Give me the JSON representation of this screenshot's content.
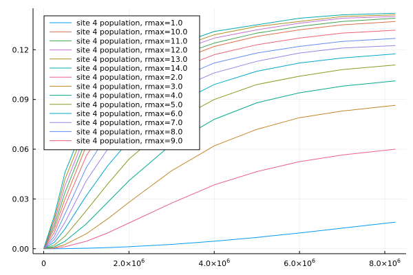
{
  "chart_data": {
    "type": "line",
    "title": "",
    "xlabel": "",
    "ylabel": "",
    "xlim": [
      -250000,
      8500000
    ],
    "ylim": [
      -0.003,
      0.145
    ],
    "grid": true,
    "legend_position": "top-left",
    "x_ticks": [
      {
        "value": 0,
        "label": "0",
        "exp": ""
      },
      {
        "value": 2000000,
        "label": "2.0×10",
        "exp": "6"
      },
      {
        "value": 4000000,
        "label": "4.0×10",
        "exp": "6"
      },
      {
        "value": 6000000,
        "label": "6.0×10",
        "exp": "6"
      },
      {
        "value": 8000000,
        "label": "8.0×10",
        "exp": "6"
      }
    ],
    "y_ticks": [
      {
        "value": 0.0,
        "label": "0.00"
      },
      {
        "value": 0.03,
        "label": "0.03"
      },
      {
        "value": 0.06,
        "label": "0.06"
      },
      {
        "value": 0.09,
        "label": "0.09"
      },
      {
        "value": 0.12,
        "label": "0.12"
      }
    ],
    "x": [
      0,
      250000,
      500000,
      1000000,
      1500000,
      2000000,
      3000000,
      4000000,
      5000000,
      6000000,
      7000000,
      8250000
    ],
    "series": [
      {
        "name": "site 4 population, rmax=1.0",
        "color": "#009AFA",
        "values": [
          0,
          2e-05,
          8e-05,
          0.0003,
          0.0007,
          0.0012,
          0.0026,
          0.0045,
          0.0068,
          0.0095,
          0.0124,
          0.016
        ]
      },
      {
        "name": "site 4 population, rmax=10.0",
        "color": "#E26F46",
        "values": [
          0,
          0.012,
          0.03,
          0.062,
          0.082,
          0.095,
          0.112,
          0.122,
          0.128,
          0.132,
          0.135,
          0.137
        ]
      },
      {
        "name": "site 4 population, rmax=11.0",
        "color": "#3DA44D",
        "values": [
          0,
          0.014,
          0.034,
          0.066,
          0.086,
          0.099,
          0.115,
          0.124,
          0.13,
          0.134,
          0.137,
          0.139
        ]
      },
      {
        "name": "site 4 population, rmax=12.0",
        "color": "#C271D2",
        "values": [
          0,
          0.016,
          0.038,
          0.07,
          0.09,
          0.102,
          0.118,
          0.127,
          0.132,
          0.136,
          0.139,
          0.14
        ]
      },
      {
        "name": "site 4 population, rmax=13.0",
        "color": "#AC8E18",
        "values": [
          0,
          0.018,
          0.042,
          0.074,
          0.093,
          0.106,
          0.12,
          0.129,
          0.134,
          0.137,
          0.14,
          0.141
        ]
      },
      {
        "name": "site 4 population, rmax=14.0",
        "color": "#00A9AD",
        "values": [
          0,
          0.02,
          0.046,
          0.078,
          0.097,
          0.109,
          0.122,
          0.131,
          0.135,
          0.139,
          0.141,
          0.142
        ]
      },
      {
        "name": "site 4 population, rmax=2.0",
        "color": "#ED5D92",
        "values": [
          0,
          0.0003,
          0.0012,
          0.0045,
          0.0095,
          0.0155,
          0.0275,
          0.0385,
          0.0465,
          0.0525,
          0.0565,
          0.06
        ]
      },
      {
        "name": "site 4 population, rmax=3.0",
        "color": "#C68225",
        "values": [
          0,
          0.0006,
          0.0025,
          0.009,
          0.018,
          0.028,
          0.047,
          0.062,
          0.072,
          0.079,
          0.083,
          0.0865
        ]
      },
      {
        "name": "site 4 population, rmax=4.0",
        "color": "#00A98D",
        "values": [
          0,
          0.0012,
          0.0045,
          0.015,
          0.028,
          0.041,
          0.063,
          0.078,
          0.088,
          0.094,
          0.098,
          0.1012
        ]
      },
      {
        "name": "site 4 population, rmax=5.0",
        "color": "#8E971E",
        "values": [
          0,
          0.0022,
          0.0075,
          0.023,
          0.039,
          0.054,
          0.076,
          0.09,
          0.099,
          0.104,
          0.108,
          0.1108
        ]
      },
      {
        "name": "site 4 population, rmax=6.0",
        "color": "#00A8CB",
        "values": [
          0,
          0.0038,
          0.012,
          0.032,
          0.05,
          0.065,
          0.086,
          0.099,
          0.107,
          0.112,
          0.115,
          0.1175
        ]
      },
      {
        "name": "site 4 population, rmax=7.0",
        "color": "#9B7FE9",
        "values": [
          0,
          0.0055,
          0.016,
          0.041,
          0.06,
          0.075,
          0.095,
          0.106,
          0.113,
          0.118,
          0.121,
          0.1225
        ]
      },
      {
        "name": "site 4 population, rmax=8.0",
        "color": "#618DF6",
        "values": [
          0,
          0.0075,
          0.021,
          0.049,
          0.069,
          0.083,
          0.101,
          0.112,
          0.118,
          0.122,
          0.125,
          0.1268
        ]
      },
      {
        "name": "site 4 population, rmax=9.0",
        "color": "#F05F73",
        "values": [
          0,
          0.0098,
          0.026,
          0.056,
          0.076,
          0.09,
          0.107,
          0.117,
          0.123,
          0.127,
          0.13,
          0.1318
        ]
      }
    ]
  }
}
